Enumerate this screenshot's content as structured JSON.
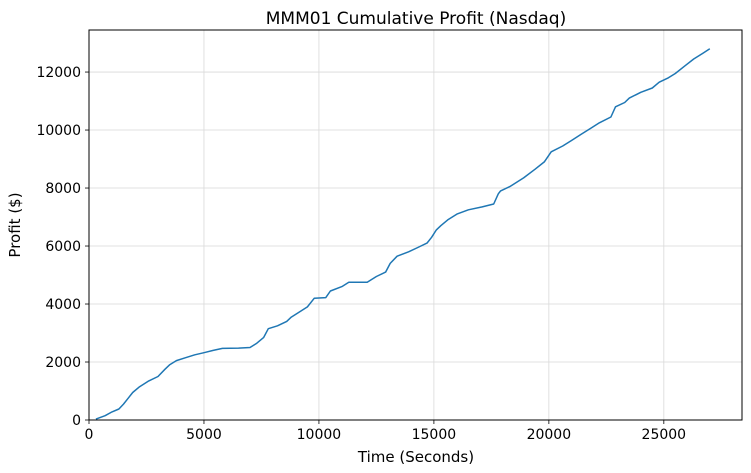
{
  "chart_data": {
    "type": "line",
    "title": "MMM01 Cumulative Profit (Nasdaq)",
    "xlabel": "Time (Seconds)",
    "ylabel": "Profit ($)",
    "xlim": [
      0,
      28400
    ],
    "ylim": [
      0,
      13450
    ],
    "xticks": [
      "0",
      "5000",
      "10000",
      "15000",
      "20000",
      "25000"
    ],
    "yticks": [
      "0",
      "2000",
      "4000",
      "6000",
      "8000",
      "10000",
      "12000"
    ],
    "grid": true,
    "series": [
      {
        "name": "",
        "color": "#1f77b4",
        "x": [
          300,
          700,
          1000,
          1300,
          1500,
          1700,
          1900,
          2200,
          2600,
          3000,
          3300,
          3500,
          3800,
          4200,
          4600,
          5000,
          5400,
          5800,
          6500,
          7000,
          7300,
          7600,
          7800,
          8200,
          8600,
          8800,
          9100,
          9500,
          9800,
          10300,
          10500,
          11000,
          11300,
          12100,
          12500,
          12900,
          13100,
          13400,
          13900,
          14300,
          14700,
          14900,
          15100,
          15300,
          15600,
          16000,
          16500,
          17100,
          17600,
          17800,
          17900,
          18300,
          18600,
          18900,
          19400,
          19800,
          20100,
          20600,
          21000,
          21400,
          21800,
          22200,
          22700,
          22900,
          23300,
          23500,
          24000,
          24500,
          24800,
          25200,
          25500,
          25900,
          26300,
          26700,
          27000
        ],
        "y": [
          30,
          150,
          280,
          380,
          550,
          750,
          950,
          1150,
          1350,
          1500,
          1750,
          1900,
          2050,
          2150,
          2250,
          2320,
          2400,
          2470,
          2480,
          2500,
          2650,
          2850,
          3150,
          3250,
          3400,
          3550,
          3700,
          3900,
          4200,
          4220,
          4450,
          4600,
          4750,
          4750,
          4950,
          5100,
          5400,
          5650,
          5800,
          5950,
          6100,
          6300,
          6550,
          6700,
          6900,
          7100,
          7250,
          7350,
          7450,
          7800,
          7900,
          8050,
          8200,
          8350,
          8650,
          8900,
          9250,
          9450,
          9650,
          9850,
          10050,
          10250,
          10450,
          10800,
          10950,
          11100,
          11300,
          11450,
          11650,
          11800,
          11950,
          12200,
          12450,
          12650,
          12800
        ]
      }
    ]
  }
}
